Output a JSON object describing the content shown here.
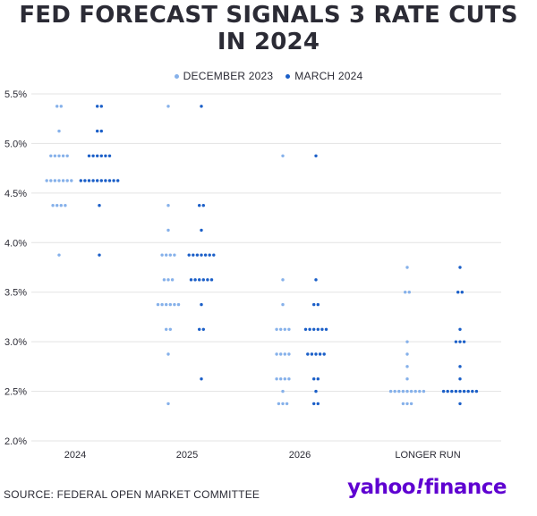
{
  "title_line1": "FED FORECAST SIGNALS 3 RATE CUTS",
  "title_line2": "IN 2024",
  "legend": [
    {
      "label": "DECEMBER 2023",
      "color": "#86b1ea"
    },
    {
      "label": "MARCH 2024",
      "color": "#1b5fc8"
    }
  ],
  "source": "SOURCE: FEDERAL OPEN MARKET COMMITTEE",
  "logo": {
    "part1": "yahoo",
    "bang": "!",
    "part2": "finance"
  },
  "chart_data": {
    "type": "scatter",
    "title": "FED FORECAST SIGNALS 3 RATE CUTS IN 2024",
    "ylabel": "",
    "xlabel": "",
    "ylim": [
      2.0,
      5.5
    ],
    "y_ticks": [
      "5.5%",
      "5.0%",
      "4.5%",
      "4.0%",
      "3.5%",
      "3.0%",
      "2.5%",
      "2.0%"
    ],
    "y_tick_values": [
      5.5,
      5.0,
      4.5,
      4.0,
      3.5,
      3.0,
      2.5,
      2.0
    ],
    "categories": [
      "2024",
      "2025",
      "2026",
      "LONGER RUN"
    ],
    "grid": true,
    "legend_position": "top-center",
    "series": [
      {
        "name": "DECEMBER 2023",
        "color": "#86b1ea",
        "points": [
          [
            [
              5.375,
              2
            ],
            [
              5.125,
              1
            ],
            [
              4.875,
              5
            ],
            [
              4.625,
              7
            ],
            [
              4.375,
              4
            ],
            [
              3.875,
              1
            ]
          ],
          [
            [
              5.375,
              1
            ],
            [
              4.375,
              1
            ],
            [
              4.125,
              1
            ],
            [
              3.875,
              4
            ],
            [
              3.625,
              3
            ],
            [
              3.375,
              6
            ],
            [
              3.125,
              2
            ],
            [
              2.875,
              1
            ],
            [
              2.375,
              1
            ]
          ],
          [
            [
              4.875,
              1
            ],
            [
              3.625,
              1
            ],
            [
              3.375,
              1
            ],
            [
              3.125,
              4
            ],
            [
              2.875,
              4
            ],
            [
              2.625,
              4
            ],
            [
              2.5,
              1
            ],
            [
              2.375,
              3
            ]
          ],
          [
            [
              3.75,
              1
            ],
            [
              3.5,
              2
            ],
            [
              3.0,
              1
            ],
            [
              2.875,
              1
            ],
            [
              2.75,
              1
            ],
            [
              2.625,
              1
            ],
            [
              2.5,
              9
            ],
            [
              2.375,
              3
            ]
          ]
        ]
      },
      {
        "name": "MARCH 2024",
        "color": "#1b5fc8",
        "points": [
          [
            [
              5.375,
              2
            ],
            [
              5.125,
              2
            ],
            [
              4.875,
              6
            ],
            [
              4.625,
              10
            ],
            [
              4.375,
              1
            ],
            [
              3.875,
              1
            ]
          ],
          [
            [
              5.375,
              1
            ],
            [
              4.375,
              2
            ],
            [
              4.125,
              1
            ],
            [
              3.875,
              7
            ],
            [
              3.625,
              6
            ],
            [
              3.375,
              1
            ],
            [
              3.125,
              2
            ],
            [
              2.625,
              1
            ]
          ],
          [
            [
              4.875,
              1
            ],
            [
              3.625,
              1
            ],
            [
              3.375,
              2
            ],
            [
              3.125,
              6
            ],
            [
              2.875,
              5
            ],
            [
              2.625,
              2
            ],
            [
              2.5,
              1
            ],
            [
              2.375,
              2
            ]
          ],
          [
            [
              3.75,
              1
            ],
            [
              3.5,
              2
            ],
            [
              3.125,
              1
            ],
            [
              3.0,
              3
            ],
            [
              2.75,
              1
            ],
            [
              2.625,
              1
            ],
            [
              2.5,
              9
            ],
            [
              2.375,
              1
            ]
          ]
        ]
      }
    ]
  }
}
